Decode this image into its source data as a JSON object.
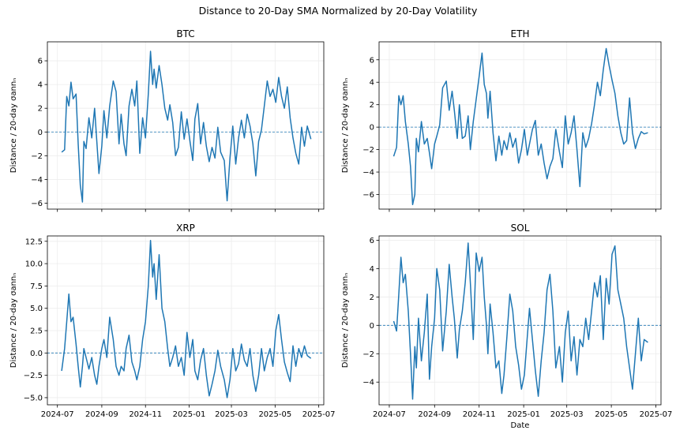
{
  "figure": {
    "title": "Distance to 20-Day SMA Normalized by 20-Day Volatility"
  },
  "chart_data": [
    {
      "type": "line",
      "title": "BTC",
      "xlabel": "",
      "ylabel": "Distance / 20-day σannₙ",
      "ylim": [
        -6.5,
        7.6
      ],
      "yticks": [
        -6,
        -4,
        -2,
        0,
        2,
        4,
        6
      ],
      "ytick_labels": [
        "−6",
        "−4",
        "−2",
        "0",
        "2",
        "4",
        "6"
      ],
      "xticks": [
        "2024-07-01",
        "2024-09-01",
        "2024-11-01",
        "2025-01-01",
        "2025-03-01",
        "2025-05-01",
        "2025-07-01"
      ],
      "xtick_labels": [],
      "grid": true,
      "reference_line": 0,
      "color": "#1f77b4",
      "series": [
        {
          "x": [
            "2024-07-07",
            "2024-07-11",
            "2024-07-14",
            "2024-07-17",
            "2024-07-20",
            "2024-07-23",
            "2024-07-27",
            "2024-07-30",
            "2024-08-02",
            "2024-08-05",
            "2024-08-07",
            "2024-08-10",
            "2024-08-14",
            "2024-08-18",
            "2024-08-22",
            "2024-08-25",
            "2024-08-28",
            "2024-09-01",
            "2024-09-04",
            "2024-09-08",
            "2024-09-12",
            "2024-09-17",
            "2024-09-21",
            "2024-09-25",
            "2024-09-28",
            "2024-10-02",
            "2024-10-05",
            "2024-10-09",
            "2024-10-13",
            "2024-10-17",
            "2024-10-20",
            "2024-10-24",
            "2024-10-28",
            "2024-11-01",
            "2024-11-05",
            "2024-11-08",
            "2024-11-11",
            "2024-11-13",
            "2024-11-16",
            "2024-11-20",
            "2024-11-24",
            "2024-11-28",
            "2024-12-02",
            "2024-12-05",
            "2024-12-09",
            "2024-12-13",
            "2024-12-17",
            "2024-12-21",
            "2024-12-25",
            "2024-12-29",
            "2025-01-02",
            "2025-01-06",
            "2025-01-09",
            "2025-01-13",
            "2025-01-17",
            "2025-01-21",
            "2025-01-25",
            "2025-01-29",
            "2025-02-02",
            "2025-02-06",
            "2025-02-10",
            "2025-02-14",
            "2025-02-19",
            "2025-02-23",
            "2025-02-27",
            "2025-03-03",
            "2025-03-07",
            "2025-03-11",
            "2025-03-15",
            "2025-03-19",
            "2025-03-23",
            "2025-03-27",
            "2025-03-31",
            "2025-04-04",
            "2025-04-08",
            "2025-04-12",
            "2025-04-16",
            "2025-04-20",
            "2025-04-24",
            "2025-04-28",
            "2025-05-02",
            "2025-05-06",
            "2025-05-10",
            "2025-05-14",
            "2025-05-18",
            "2025-05-22",
            "2025-05-26",
            "2025-05-30",
            "2025-06-03",
            "2025-06-07",
            "2025-06-11",
            "2025-06-15",
            "2025-06-20"
          ],
          "y": [
            -1.7,
            -1.5,
            3.0,
            2.2,
            4.2,
            2.8,
            3.2,
            -1.0,
            -4.5,
            -5.9,
            -0.8,
            -1.4,
            1.2,
            -0.5,
            2.0,
            -0.8,
            -3.5,
            -1.2,
            1.8,
            -0.5,
            2.2,
            4.3,
            3.4,
            -1.0,
            1.5,
            -1.0,
            -2.0,
            2.2,
            3.6,
            2.2,
            4.3,
            -1.8,
            1.2,
            -0.5,
            3.2,
            6.8,
            4.0,
            5.3,
            3.7,
            5.6,
            4.0,
            2.0,
            1.0,
            2.3,
            0.8,
            -2.0,
            -1.3,
            1.7,
            -0.6,
            1.1,
            -0.7,
            -2.4,
            1.1,
            2.4,
            -1.0,
            0.8,
            -1.2,
            -2.5,
            -1.3,
            -2.2,
            0.4,
            -1.7,
            -2.4,
            -5.8,
            -2.2,
            0.5,
            -2.7,
            -0.5,
            1.0,
            -0.5,
            1.5,
            0.5,
            -1.0,
            -3.7,
            -0.8,
            0.2,
            2.2,
            4.3,
            3.0,
            3.6,
            2.5,
            4.6,
            3.0,
            2.0,
            3.8,
            1.2,
            -0.5,
            -1.8,
            -2.7,
            0.4,
            -1.2,
            0.5,
            -0.6
          ]
        }
      ]
    },
    {
      "type": "line",
      "title": "ETH",
      "xlabel": "",
      "ylabel": "Distance / 20-day σannₙ",
      "ylim": [
        -7.3,
        7.6
      ],
      "yticks": [
        -6,
        -4,
        -2,
        0,
        2,
        4,
        6
      ],
      "ytick_labels": [
        "−6",
        "−4",
        "−2",
        "0",
        "2",
        "4",
        "6"
      ],
      "xticks": [
        "2024-07-01",
        "2024-09-01",
        "2024-11-01",
        "2025-01-01",
        "2025-03-01",
        "2025-05-01",
        "2025-07-01"
      ],
      "xtick_labels": [],
      "grid": true,
      "reference_line": 0,
      "color": "#1f77b4",
      "series": [
        {
          "x": [
            "2024-07-07",
            "2024-07-11",
            "2024-07-14",
            "2024-07-17",
            "2024-07-20",
            "2024-07-23",
            "2024-07-27",
            "2024-07-30",
            "2024-08-02",
            "2024-08-05",
            "2024-08-07",
            "2024-08-10",
            "2024-08-14",
            "2024-08-18",
            "2024-08-22",
            "2024-08-25",
            "2024-08-28",
            "2024-09-01",
            "2024-09-04",
            "2024-09-08",
            "2024-09-12",
            "2024-09-17",
            "2024-09-21",
            "2024-09-25",
            "2024-09-28",
            "2024-10-02",
            "2024-10-05",
            "2024-10-09",
            "2024-10-13",
            "2024-10-17",
            "2024-10-20",
            "2024-10-24",
            "2024-10-28",
            "2024-11-01",
            "2024-11-05",
            "2024-11-08",
            "2024-11-11",
            "2024-11-13",
            "2024-11-16",
            "2024-11-20",
            "2024-11-24",
            "2024-11-28",
            "2024-12-02",
            "2024-12-05",
            "2024-12-09",
            "2024-12-13",
            "2024-12-17",
            "2024-12-21",
            "2024-12-25",
            "2024-12-29",
            "2025-01-02",
            "2025-01-06",
            "2025-01-09",
            "2025-01-13",
            "2025-01-17",
            "2025-01-21",
            "2025-01-25",
            "2025-01-29",
            "2025-02-02",
            "2025-02-06",
            "2025-02-10",
            "2025-02-14",
            "2025-02-19",
            "2025-02-23",
            "2025-02-27",
            "2025-03-03",
            "2025-03-07",
            "2025-03-11",
            "2025-03-15",
            "2025-03-19",
            "2025-03-23",
            "2025-03-27",
            "2025-03-31",
            "2025-04-04",
            "2025-04-08",
            "2025-04-12",
            "2025-04-16",
            "2025-04-20",
            "2025-04-24",
            "2025-04-28",
            "2025-05-02",
            "2025-05-06",
            "2025-05-10",
            "2025-05-14",
            "2025-05-18",
            "2025-05-22",
            "2025-05-26",
            "2025-05-30",
            "2025-06-03",
            "2025-06-07",
            "2025-06-11",
            "2025-06-15",
            "2025-06-20"
          ],
          "y": [
            -2.6,
            -1.8,
            2.8,
            2.0,
            2.8,
            0.5,
            -1.5,
            -3.5,
            -6.9,
            -6.0,
            -1.0,
            -2.2,
            0.5,
            -1.5,
            -1.0,
            -2.3,
            -3.7,
            -1.5,
            -0.8,
            0.2,
            3.5,
            4.1,
            1.5,
            3.2,
            1.5,
            -1.0,
            2.0,
            -1.0,
            -0.8,
            1.0,
            -2.0,
            0.5,
            2.5,
            4.5,
            6.6,
            3.8,
            3.0,
            0.8,
            3.2,
            -0.5,
            -3.0,
            -0.8,
            -2.5,
            -1.2,
            -2.0,
            -0.5,
            -1.8,
            -1.0,
            -3.2,
            -2.0,
            -0.2,
            -2.5,
            -1.5,
            -0.2,
            0.6,
            -2.5,
            -1.5,
            -3.2,
            -4.6,
            -3.5,
            -2.8,
            -0.2,
            -2.2,
            -3.6,
            1.0,
            -1.5,
            -0.5,
            1.0,
            -2.0,
            -5.3,
            -0.5,
            -1.8,
            -1.0,
            0.3,
            2.0,
            4.0,
            2.8,
            5.1,
            7.0,
            5.5,
            4.2,
            3.0,
            1.0,
            -0.5,
            -1.5,
            -1.2,
            2.6,
            -0.5,
            -1.9,
            -1.0,
            -0.4,
            -0.6,
            -0.5
          ]
        }
      ]
    },
    {
      "type": "line",
      "title": "XRP",
      "xlabel": "",
      "ylabel": "Distance / 20-day σannₙ",
      "ylim": [
        -5.8,
        13.1
      ],
      "yticks": [
        -5,
        -2.5,
        0,
        2.5,
        5,
        7.5,
        10,
        12.5
      ],
      "ytick_labels": [
        "−5.0",
        "−2.5",
        "0.0",
        "2.5",
        "5.0",
        "7.5",
        "10.0",
        "12.5"
      ],
      "xticks": [
        "2024-07-01",
        "2024-09-01",
        "2024-11-01",
        "2025-01-01",
        "2025-03-01",
        "2025-05-01",
        "2025-07-01"
      ],
      "xtick_labels": [
        "2024-07",
        "2024-09",
        "2024-11",
        "2025-01",
        "2025-03",
        "2025-05",
        "2025-07"
      ],
      "grid": true,
      "reference_line": 0,
      "color": "#1f77b4",
      "series": [
        {
          "x": [
            "2024-07-07",
            "2024-07-11",
            "2024-07-14",
            "2024-07-17",
            "2024-07-20",
            "2024-07-23",
            "2024-07-27",
            "2024-07-30",
            "2024-08-02",
            "2024-08-05",
            "2024-08-07",
            "2024-08-10",
            "2024-08-14",
            "2024-08-18",
            "2024-08-22",
            "2024-08-25",
            "2024-08-28",
            "2024-09-01",
            "2024-09-04",
            "2024-09-08",
            "2024-09-12",
            "2024-09-17",
            "2024-09-21",
            "2024-09-25",
            "2024-09-28",
            "2024-10-02",
            "2024-10-05",
            "2024-10-09",
            "2024-10-13",
            "2024-10-17",
            "2024-10-20",
            "2024-10-24",
            "2024-10-28",
            "2024-11-01",
            "2024-11-05",
            "2024-11-08",
            "2024-11-11",
            "2024-11-13",
            "2024-11-16",
            "2024-11-20",
            "2024-11-24",
            "2024-11-28",
            "2024-12-02",
            "2024-12-05",
            "2024-12-09",
            "2024-12-13",
            "2024-12-17",
            "2024-12-21",
            "2024-12-25",
            "2024-12-29",
            "2025-01-02",
            "2025-01-06",
            "2025-01-09",
            "2025-01-13",
            "2025-01-17",
            "2025-01-21",
            "2025-01-25",
            "2025-01-29",
            "2025-02-02",
            "2025-02-06",
            "2025-02-10",
            "2025-02-14",
            "2025-02-19",
            "2025-02-23",
            "2025-02-27",
            "2025-03-03",
            "2025-03-07",
            "2025-03-11",
            "2025-03-15",
            "2025-03-19",
            "2025-03-23",
            "2025-03-27",
            "2025-03-31",
            "2025-04-04",
            "2025-04-08",
            "2025-04-12",
            "2025-04-16",
            "2025-04-20",
            "2025-04-24",
            "2025-04-28",
            "2025-05-02",
            "2025-05-06",
            "2025-05-10",
            "2025-05-14",
            "2025-05-18",
            "2025-05-22",
            "2025-05-26",
            "2025-05-30",
            "2025-06-03",
            "2025-06-07",
            "2025-06-11",
            "2025-06-15",
            "2025-06-20"
          ],
          "y": [
            -2.0,
            0.5,
            3.5,
            6.6,
            3.5,
            4.0,
            1.0,
            -1.5,
            -3.8,
            -1.5,
            0.5,
            -0.5,
            -1.8,
            -0.5,
            -2.5,
            -3.5,
            -1.5,
            0.5,
            1.5,
            -0.5,
            4.0,
            1.5,
            -1.5,
            -2.5,
            -1.5,
            -2.0,
            0.5,
            2.0,
            -1.0,
            -2.0,
            -3.0,
            -1.5,
            1.5,
            3.5,
            7.5,
            12.6,
            8.5,
            10.0,
            6.0,
            11.0,
            5.0,
            3.5,
            0.5,
            -1.5,
            -0.5,
            0.8,
            -1.5,
            -0.5,
            -2.5,
            2.3,
            -0.5,
            1.5,
            -2.0,
            -3.0,
            -0.8,
            0.5,
            -2.5,
            -4.8,
            -3.5,
            -2.0,
            0.3,
            -1.5,
            -3.0,
            -5.0,
            -3.0,
            0.5,
            -2.0,
            -1.2,
            1.0,
            -0.8,
            -1.5,
            0.5,
            -2.5,
            -4.3,
            -2.5,
            0.5,
            -2.0,
            -0.5,
            0.5,
            -1.5,
            2.5,
            4.3,
            1.5,
            -1.0,
            -2.2,
            -3.2,
            0.8,
            -1.5,
            0.5,
            -0.5,
            0.8,
            -0.3,
            -0.6
          ]
        }
      ]
    },
    {
      "type": "line",
      "title": "SOL",
      "xlabel": "Date",
      "ylabel": "Distance / 20-day σannₙ",
      "ylim": [
        -5.6,
        6.3
      ],
      "yticks": [
        -4,
        -2,
        0,
        2,
        4,
        6
      ],
      "ytick_labels": [
        "−4",
        "−2",
        "0",
        "2",
        "4",
        "6"
      ],
      "xticks": [
        "2024-07-01",
        "2024-09-01",
        "2024-11-01",
        "2025-01-01",
        "2025-03-01",
        "2025-05-01",
        "2025-07-01"
      ],
      "xtick_labels": [
        "2024-07",
        "2024-09",
        "2024-11",
        "2025-01",
        "2025-03",
        "2025-05",
        "2025-07"
      ],
      "grid": true,
      "reference_line": 0,
      "color": "#1f77b4",
      "series": [
        {
          "x": [
            "2024-07-07",
            "2024-07-11",
            "2024-07-14",
            "2024-07-17",
            "2024-07-20",
            "2024-07-23",
            "2024-07-27",
            "2024-07-30",
            "2024-08-02",
            "2024-08-05",
            "2024-08-07",
            "2024-08-10",
            "2024-08-14",
            "2024-08-18",
            "2024-08-22",
            "2024-08-25",
            "2024-08-28",
            "2024-09-01",
            "2024-09-04",
            "2024-09-08",
            "2024-09-12",
            "2024-09-17",
            "2024-09-21",
            "2024-09-25",
            "2024-09-28",
            "2024-10-02",
            "2024-10-05",
            "2024-10-09",
            "2024-10-13",
            "2024-10-17",
            "2024-10-20",
            "2024-10-24",
            "2024-10-28",
            "2024-11-01",
            "2024-11-05",
            "2024-11-08",
            "2024-11-11",
            "2024-11-13",
            "2024-11-16",
            "2024-11-20",
            "2024-11-24",
            "2024-11-28",
            "2024-12-02",
            "2024-12-05",
            "2024-12-09",
            "2024-12-13",
            "2024-12-17",
            "2024-12-21",
            "2024-12-25",
            "2024-12-29",
            "2025-01-02",
            "2025-01-06",
            "2025-01-09",
            "2025-01-13",
            "2025-01-17",
            "2025-01-21",
            "2025-01-25",
            "2025-01-29",
            "2025-02-02",
            "2025-02-06",
            "2025-02-10",
            "2025-02-14",
            "2025-02-19",
            "2025-02-23",
            "2025-02-27",
            "2025-03-03",
            "2025-03-07",
            "2025-03-11",
            "2025-03-15",
            "2025-03-19",
            "2025-03-23",
            "2025-03-27",
            "2025-03-31",
            "2025-04-04",
            "2025-04-08",
            "2025-04-12",
            "2025-04-16",
            "2025-04-20",
            "2025-04-24",
            "2025-04-28",
            "2025-05-02",
            "2025-05-06",
            "2025-05-10",
            "2025-05-14",
            "2025-05-18",
            "2025-05-22",
            "2025-05-26",
            "2025-05-30",
            "2025-06-03",
            "2025-06-07",
            "2025-06-11",
            "2025-06-15",
            "2025-06-20"
          ],
          "y": [
            0.3,
            -0.4,
            2.2,
            4.8,
            3.0,
            3.6,
            1.0,
            -2.0,
            -5.2,
            -1.5,
            -3.0,
            0.5,
            -2.5,
            -0.5,
            2.2,
            -3.8,
            -1.5,
            0.5,
            4.0,
            2.5,
            -1.8,
            1.0,
            4.3,
            2.0,
            0.5,
            -2.3,
            -0.3,
            1.0,
            3.0,
            5.8,
            3.0,
            -1.0,
            5.1,
            3.8,
            4.8,
            2.0,
            0.0,
            -2.0,
            1.5,
            -0.5,
            -3.0,
            -2.5,
            -4.8,
            -3.5,
            -0.8,
            2.2,
            1.0,
            -1.5,
            -2.8,
            -4.5,
            -3.5,
            -0.8,
            1.2,
            -1.0,
            -3.2,
            -5.0,
            -2.5,
            -0.5,
            2.5,
            3.6,
            1.0,
            -3.0,
            -1.5,
            -4.0,
            -0.5,
            1.0,
            -2.5,
            -0.8,
            -3.5,
            -1.0,
            -1.5,
            0.5,
            -1.0,
            1.0,
            3.0,
            2.0,
            3.5,
            -1.0,
            3.3,
            1.5,
            5.0,
            5.6,
            2.5,
            1.5,
            0.5,
            -1.5,
            -3.0,
            -4.5,
            -2.0,
            0.5,
            -2.5,
            -1.0,
            -1.2
          ]
        }
      ]
    }
  ]
}
